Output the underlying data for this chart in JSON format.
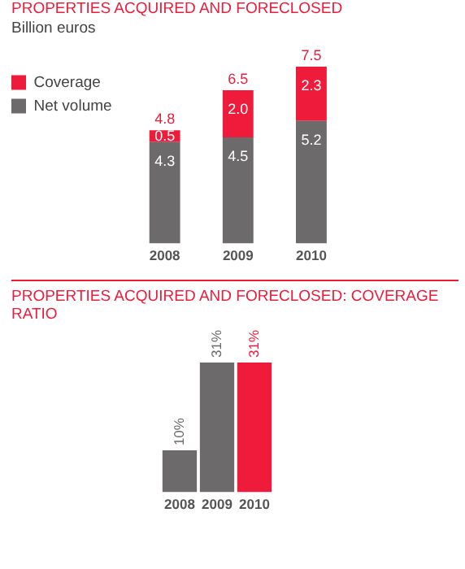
{
  "chart_data": [
    {
      "type": "bar",
      "title": "PROPERTIES ACQUIRED AND FORECLOSED",
      "subtitle": "Billion euros",
      "categories": [
        "2008",
        "2009",
        "2010"
      ],
      "stacked": true,
      "legend": "top left",
      "totals": [
        "4.8",
        "6.5",
        "7.5"
      ],
      "series": [
        {
          "name": "Net volume",
          "color": "#6d6a6b",
          "values": [
            4.3,
            4.5,
            5.2
          ],
          "value_labels": [
            "4.3",
            "4.5",
            "5.2"
          ]
        },
        {
          "name": "Coverage",
          "color": "#ee1c3a",
          "values": [
            0.5,
            2.0,
            2.3
          ],
          "value_labels": [
            "0.5",
            "2.0",
            "2.3"
          ]
        }
      ]
    },
    {
      "type": "bar",
      "title": "PROPERTIES ACQUIRED AND FORECLOSED: COVERAGE RATIO",
      "categories": [
        "2008",
        "2009",
        "2010"
      ],
      "values": [
        10,
        31,
        31
      ],
      "colors": [
        "#6d6a6b",
        "#6d6a6b",
        "#ee1c3a"
      ],
      "value_labels": [
        "10%",
        "31%",
        "31%"
      ]
    }
  ]
}
